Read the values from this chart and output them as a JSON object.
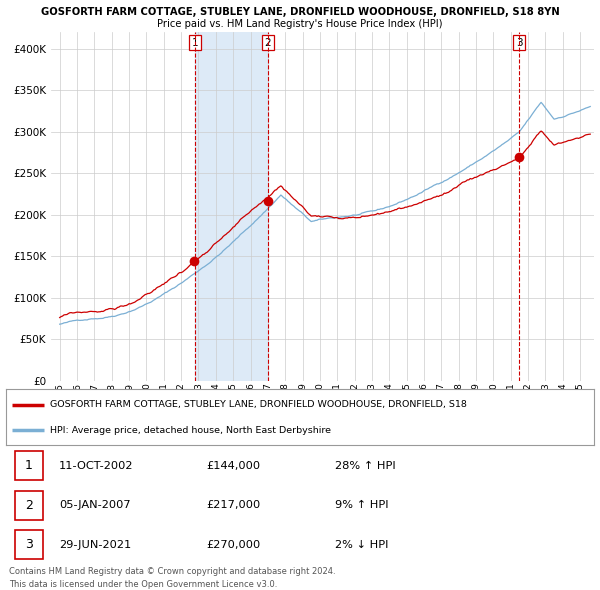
{
  "title": "GOSFORTH FARM COTTAGE, STUBLEY LANE, DRONFIELD WOODHOUSE, DRONFIELD, S18 8YN",
  "subtitle": "Price paid vs. HM Land Registry's House Price Index (HPI)",
  "legend_property": "GOSFORTH FARM COTTAGE, STUBLEY LANE, DRONFIELD WOODHOUSE, DRONFIELD, S18",
  "legend_hpi": "HPI: Average price, detached house, North East Derbyshire",
  "footer1": "Contains HM Land Registry data © Crown copyright and database right 2024.",
  "footer2": "This data is licensed under the Open Government Licence v3.0.",
  "sales": [
    {
      "num": 1,
      "date": "11-OCT-2002",
      "price": 144000,
      "pct": "28%",
      "dir": "↑"
    },
    {
      "num": 2,
      "date": "05-JAN-2007",
      "price": 217000,
      "pct": "9%",
      "dir": "↑"
    },
    {
      "num": 3,
      "date": "29-JUN-2021",
      "price": 270000,
      "pct": "2%",
      "dir": "↓"
    }
  ],
  "sale_dates_decimal": [
    2002.79,
    2007.01,
    2021.49
  ],
  "sale_prices": [
    144000,
    217000,
    270000
  ],
  "hpi_color": "#7bafd4",
  "property_color": "#cc0000",
  "background_color": "#ffffff",
  "shaded_color": "#ddeaf7",
  "grid_color": "#cccccc",
  "vline_color": "#cc0000",
  "ylim": [
    0,
    420000
  ],
  "yticks": [
    0,
    50000,
    100000,
    150000,
    200000,
    250000,
    300000,
    350000,
    400000
  ],
  "xlabel_years": [
    1995,
    1996,
    1997,
    1998,
    1999,
    2000,
    2001,
    2002,
    2003,
    2004,
    2005,
    2006,
    2007,
    2008,
    2009,
    2010,
    2011,
    2012,
    2013,
    2014,
    2015,
    2016,
    2017,
    2018,
    2019,
    2020,
    2021,
    2022,
    2023,
    2024,
    2025
  ],
  "xlim": [
    1994.5,
    2025.8
  ]
}
